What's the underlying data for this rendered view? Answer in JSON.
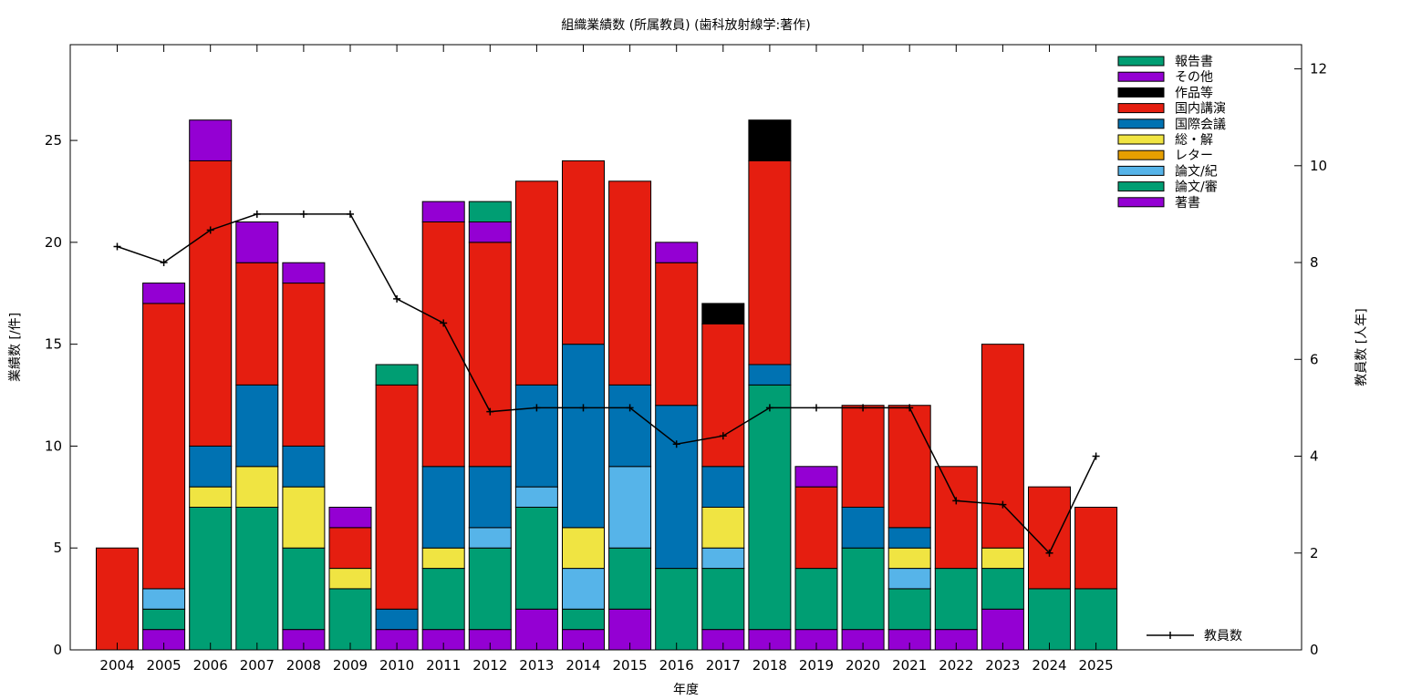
{
  "chart_data": {
    "type": "bar",
    "title": "組織業績数 (所属教員) (歯科放射線学:著作)",
    "xlabel": "年度",
    "ylabel": "業績数 [/件]",
    "y2label": "教員数 [人年]",
    "ylim": [
      0,
      29.7
    ],
    "y2lim": [
      0,
      12.5
    ],
    "yticks": [
      0,
      5,
      10,
      15,
      20,
      25
    ],
    "y2ticks": [
      0,
      2,
      4,
      6,
      8,
      10,
      12
    ],
    "grid": false,
    "legend_position": "top-right",
    "categories": [
      "2004",
      "2005",
      "2006",
      "2007",
      "2008",
      "2009",
      "2010",
      "2011",
      "2012",
      "2013",
      "2014",
      "2015",
      "2016",
      "2017",
      "2018",
      "2019",
      "2020",
      "2021",
      "2022",
      "2023",
      "2024",
      "2025"
    ],
    "series": [
      {
        "name": "著書",
        "color": "#9400d3",
        "values": [
          0,
          1,
          0,
          0,
          1,
          0,
          1,
          1,
          1,
          2,
          1,
          2,
          0,
          1,
          1,
          1,
          1,
          1,
          1,
          2,
          0,
          0
        ]
      },
      {
        "name": "論文/審",
        "color": "#009e73",
        "values": [
          0,
          1,
          7,
          7,
          4,
          3,
          0,
          3,
          4,
          5,
          1,
          3,
          4,
          3,
          12,
          3,
          4,
          2,
          3,
          2,
          3,
          3
        ]
      },
      {
        "name": "論文/紀",
        "color": "#56b4e9",
        "values": [
          0,
          1,
          0,
          0,
          0,
          0,
          0,
          0,
          1,
          1,
          2,
          4,
          0,
          1,
          0,
          0,
          0,
          1,
          0,
          0,
          0,
          0
        ]
      },
      {
        "name": "レター",
        "color": "#e69f00",
        "values": [
          0,
          0,
          0,
          0,
          0,
          0,
          0,
          0,
          0,
          0,
          0,
          0,
          0,
          0,
          0,
          0,
          0,
          0,
          0,
          0,
          0,
          0
        ]
      },
      {
        "name": "総・解",
        "color": "#f0e442",
        "values": [
          0,
          0,
          1,
          2,
          3,
          1,
          0,
          1,
          0,
          0,
          2,
          0,
          0,
          2,
          0,
          0,
          0,
          1,
          0,
          1,
          0,
          0
        ]
      },
      {
        "name": "国際会議",
        "color": "#0072b2",
        "values": [
          0,
          0,
          2,
          4,
          2,
          0,
          1,
          4,
          3,
          5,
          9,
          4,
          8,
          2,
          1,
          0,
          2,
          1,
          0,
          0,
          0,
          0
        ]
      },
      {
        "name": "国内講演",
        "color": "#e51e10",
        "values": [
          5,
          14,
          14,
          6,
          8,
          2,
          11,
          12,
          11,
          10,
          9,
          10,
          7,
          7,
          10,
          4,
          5,
          6,
          5,
          10,
          5,
          4
        ]
      },
      {
        "name": "作品等",
        "color": "#000000",
        "values": [
          0,
          0,
          0,
          0,
          0,
          0,
          0,
          0,
          0,
          0,
          0,
          0,
          0,
          1,
          2,
          0,
          0,
          0,
          0,
          0,
          0,
          0
        ]
      },
      {
        "name": "その他",
        "color": "#9400d3",
        "values": [
          0,
          1,
          2,
          2,
          1,
          1,
          0,
          1,
          1,
          0,
          0,
          0,
          1,
          0,
          0,
          1,
          0,
          0,
          0,
          0,
          0,
          0
        ]
      },
      {
        "name": "報告書",
        "color": "#009e73",
        "values": [
          0,
          0,
          0,
          0,
          0,
          0,
          1,
          0,
          1,
          0,
          0,
          0,
          0,
          0,
          0,
          0,
          0,
          0,
          0,
          0,
          0,
          0
        ]
      }
    ],
    "line": {
      "name": "教員数",
      "axis": "right",
      "color": "#000000",
      "values": [
        8.33,
        8.0,
        8.67,
        9.0,
        9.0,
        9.0,
        7.25,
        6.75,
        4.92,
        5.0,
        5.0,
        5.0,
        4.25,
        4.42,
        5.0,
        5.0,
        5.0,
        5.0,
        3.08,
        3.0,
        2.0,
        4.0
      ]
    }
  }
}
